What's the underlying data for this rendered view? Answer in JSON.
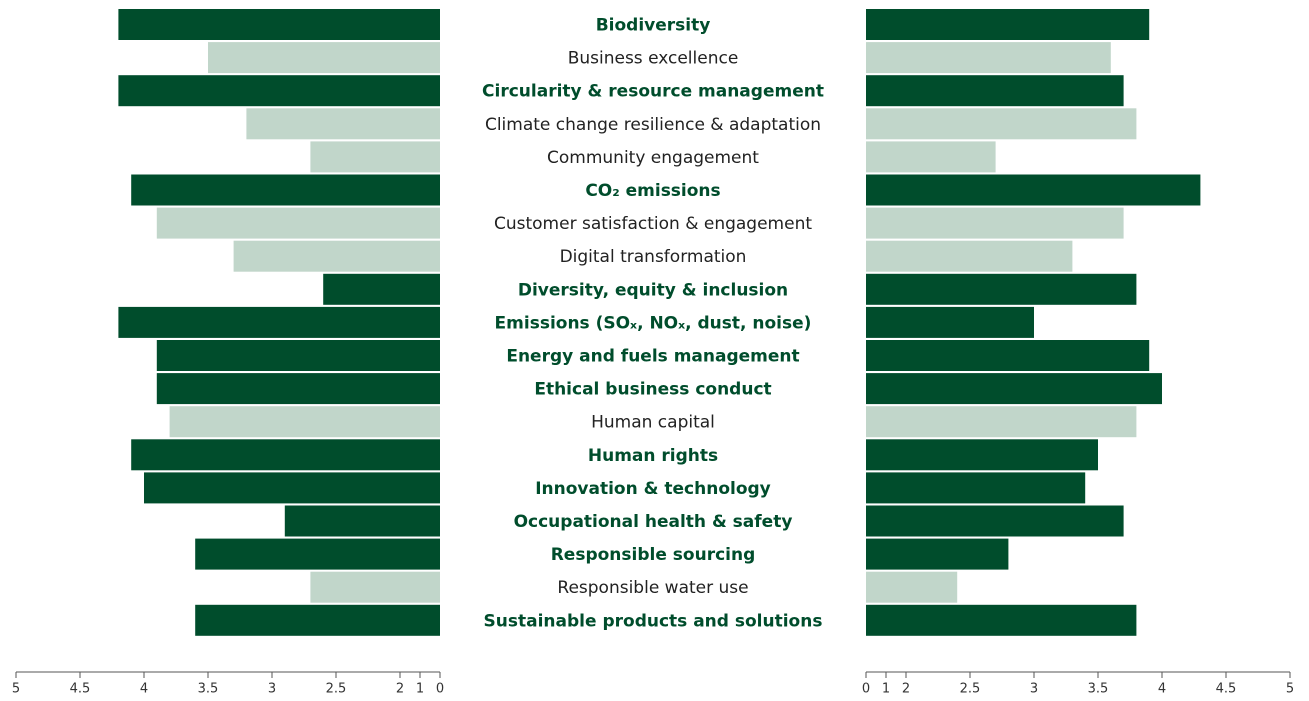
{
  "chart_data": {
    "type": "butterfly-bar",
    "categories": [
      "Biodiversity",
      "Business excellence",
      "Circularity & resource management",
      "Climate change resilience & adaptation",
      "Community engagement",
      "CO₂ emissions",
      "Customer satisfaction & engagement",
      "Digital transformation",
      "Diversity, equity & inclusion",
      "Emissions (SOₓ, NOₓ, dust, noise)",
      "Energy and fuels management",
      "Ethical business conduct",
      "Human capital",
      "Human rights",
      "Innovation & technology",
      "Occupational health & safety",
      "Responsible sourcing",
      "Responsible water use",
      "Sustainable products and solutions"
    ],
    "colors": [
      "#004d2c",
      "#c1d6ca",
      "#004d2c",
      "#c1d6ca",
      "#c1d6ca",
      "#004d2c",
      "#c1d6ca",
      "#c1d6ca",
      "#004d2c",
      "#004d2c",
      "#004d2c",
      "#004d2c",
      "#c1d6ca",
      "#004d2c",
      "#004d2c",
      "#004d2c",
      "#004d2c",
      "#c1d6ca",
      "#004d2c"
    ],
    "highlight_color": "#004d2c",
    "series": [
      {
        "values": [
          4.2,
          3.5,
          4.2,
          3.2,
          2.7,
          4.1,
          3.9,
          3.3,
          2.6,
          4.2,
          3.9,
          3.9,
          3.8,
          4.1,
          4.0,
          2.9,
          3.6,
          2.7,
          3.6
        ]
      },
      {
        "values": [
          3.9,
          3.6,
          3.7,
          3.8,
          2.7,
          4.3,
          3.7,
          3.3,
          3.8,
          3.0,
          3.9,
          4.0,
          3.8,
          3.5,
          3.4,
          3.7,
          2.8,
          2.4,
          3.8
        ]
      }
    ],
    "xlim": [
      0,
      5
    ],
    "xticks": [
      0,
      1,
      2,
      2.5,
      3,
      3.5,
      4,
      4.5,
      5
    ]
  }
}
